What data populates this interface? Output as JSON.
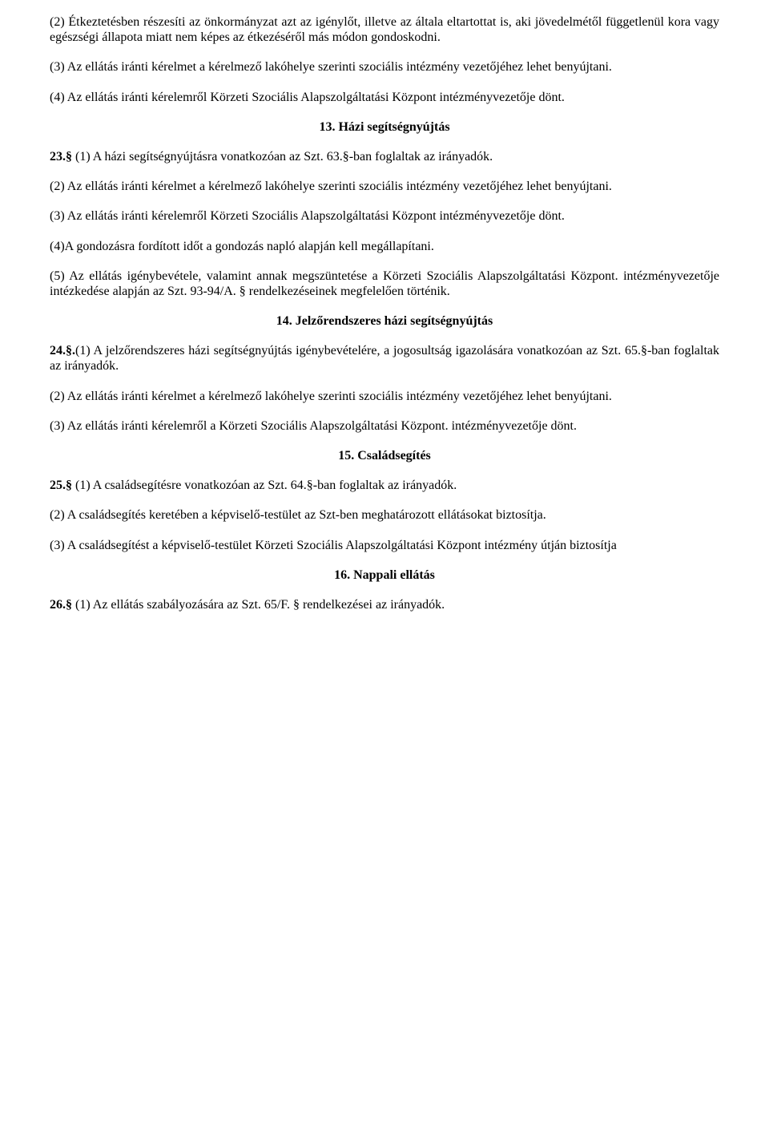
{
  "paragraphs": {
    "p1": "(2)    Étkeztetésben részesíti az önkormányzat azt az igénylőt, illetve az általa eltartottat is, aki jövedelmétől függetlenül kora vagy egészségi állapota miatt nem képes az étkezéséről más módon gondoskodni.",
    "p2": "(3)    Az ellátás iránti kérelmet a kérelmező lakóhelye szerinti szociális intézmény vezetőjéhez lehet benyújtani.",
    "p3": "(4)    Az ellátás iránti kérelemről Körzeti Szociális Alapszolgáltatási Központ intézményvezetője dönt.",
    "p4_bold": "23.§",
    "p4_rest": " (1) A házi segítségnyújtásra vonatkozóan az Szt. 63.§-ban foglaltak az irányadók.",
    "p5": "(2) Az ellátás iránti kérelmet a kérelmező lakóhelye szerinti szociális intézmény vezetőjéhez lehet benyújtani.",
    "p6": "(3) Az ellátás iránti kérelemről Körzeti Szociális Alapszolgáltatási Központ intézményvezetője dönt.",
    "p7": "(4)A gondozásra fordított időt a gondozás napló alapján kell megállapítani.",
    "p8": "(5) Az ellátás igénybevétele, valamint annak megszüntetése a Körzeti Szociális Alapszolgáltatási Központ. intézményvezetője intézkedése alapján az Szt. 93-94/A. § rendelkezéseinek megfelelően történik.",
    "p9_bold": "24.§.",
    "p9_rest": "(1) A jelzőrendszeres házi segítségnyújtás igénybevételére, a jogosultság igazolására vonatkozóan az Szt. 65.§-ban foglaltak az irányadók.",
    "p10": "(2) Az ellátás iránti kérelmet a kérelmező lakóhelye szerinti szociális intézmény vezetőjéhez lehet benyújtani.",
    "p11": "(3) Az ellátás iránti kérelemről a Körzeti Szociális Alapszolgáltatási Központ. intézményvezetője dönt.",
    "p12_bold": "25.§",
    "p12_rest": " (1) A családsegítésre vonatkozóan az Szt. 64.§-ban foglaltak az irányadók.",
    "p13": "(2) A családsegítés keretében a képviselő-testület az Szt-ben meghatározott ellátásokat biztosítja.",
    "p14": "(3) A családsegítést a képviselő-testület Körzeti Szociális Alapszolgáltatási Központ intézmény útján biztosítja",
    "p15_bold": "26.§",
    "p15_rest": " (1) Az ellátás szabályozására az Szt. 65/F. § rendelkezései az irányadók."
  },
  "headings": {
    "h1": "13. Házi segítségnyújtás",
    "h2": "14. Jelzőrendszeres házi segítségnyújtás",
    "h3": "15. Családsegítés",
    "h4": "16. Nappali ellátás"
  }
}
